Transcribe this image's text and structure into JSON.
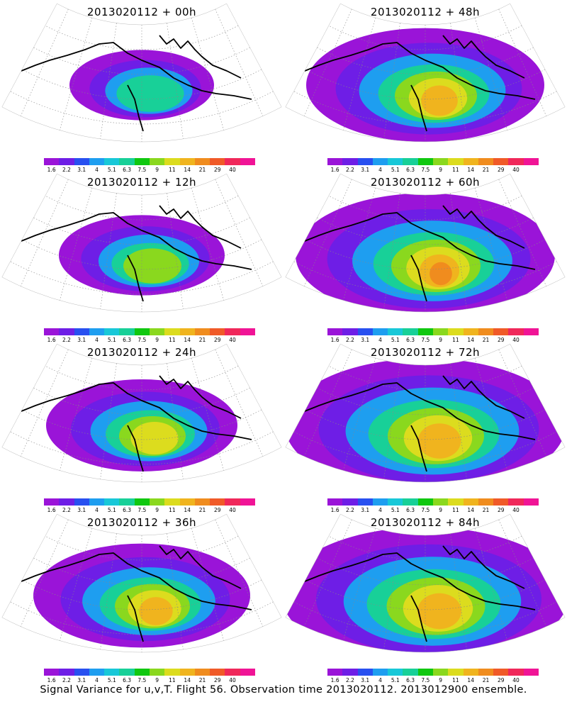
{
  "panels": [
    {
      "title": "2013020112 + 00h",
      "intensity": 0.28,
      "spread": 0.28
    },
    {
      "title": "2013020112 + 48h",
      "intensity": 0.62,
      "spread": 0.72
    },
    {
      "title": "2013020112 + 12h",
      "intensity": 0.42,
      "spread": 0.38
    },
    {
      "title": "2013020112 + 60h",
      "intensity": 0.78,
      "spread": 0.82
    },
    {
      "title": "2013020112 + 24h",
      "intensity": 0.55,
      "spread": 0.5
    },
    {
      "title": "2013020112 + 72h",
      "intensity": 0.72,
      "spread": 0.92
    },
    {
      "title": "2013020112 + 36h",
      "intensity": 0.62,
      "spread": 0.62
    },
    {
      "title": "2013020112 + 84h",
      "intensity": 0.7,
      "spread": 0.95
    }
  ],
  "colorbar": {
    "labels": [
      "1.6",
      "2.2",
      "3.1",
      "4",
      "5.1",
      "6.3",
      "7.5",
      "9",
      "11",
      "14",
      "21",
      "29",
      "40"
    ],
    "colors": [
      "#9a14d8",
      "#6e1ee6",
      "#2850f0",
      "#1e9ef0",
      "#18c8d8",
      "#18d098",
      "#10c810",
      "#8ad81e",
      "#dcdc1e",
      "#f0b41e",
      "#f08c1e",
      "#f05a28",
      "#f0285a",
      "#f01496"
    ]
  },
  "caption": "Signal Variance for u,v,T. Flight 56. Observation time 2013020112. 2013012900 ensemble."
}
